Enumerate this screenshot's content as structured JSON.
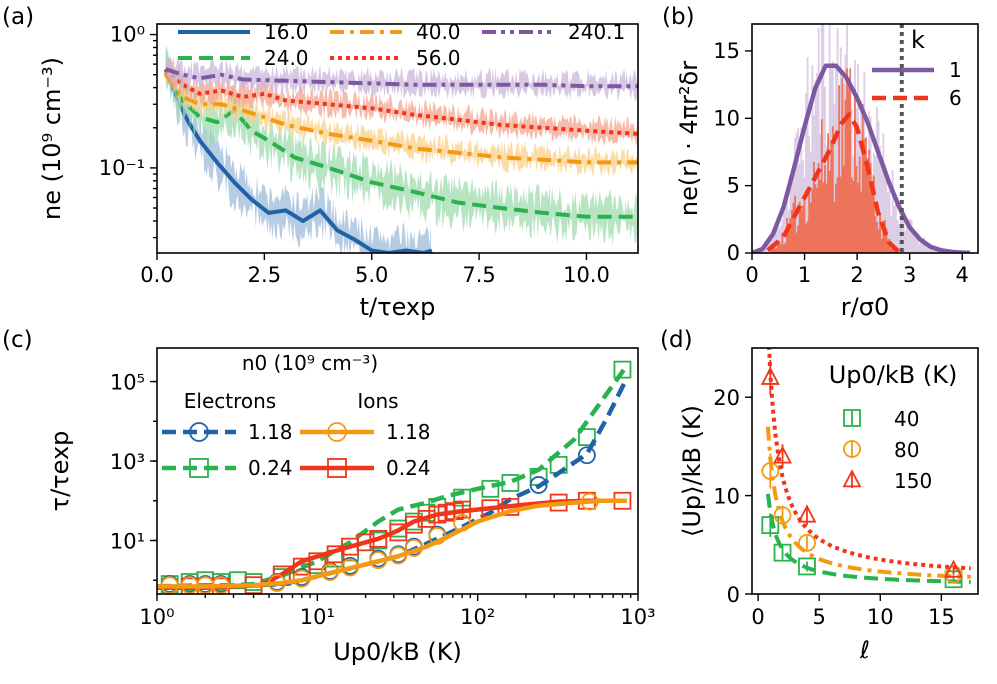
{
  "colors": {
    "blue": "#2062a8",
    "green": "#2ab24e",
    "orange": "#f39a12",
    "red": "#f0361a",
    "purple": "#7f58a4",
    "green_fill": "#9fdcb0",
    "blue_fill": "#9cbbd9",
    "orange_fill": "#f9d08a",
    "red_fill": "#f3a48f",
    "purple_fill": "#c9b6d9",
    "purple_hist": "#d7c7e2",
    "red_hist": "#ef6a4f",
    "dotgray": "#555555"
  },
  "panel_labels": [
    "(a)",
    "(b)",
    "(c)",
    "(d)"
  ],
  "chart_data": [
    {
      "id": "a",
      "type": "line",
      "yscale": "log",
      "xlabel": "t/τexp",
      "ylabel": "ne (10⁹ cm⁻³)",
      "xlim": [
        0,
        11.2
      ],
      "ylim": [
        0.023,
        1.2
      ],
      "xticks": [
        0,
        2.5,
        5,
        7.5,
        10
      ],
      "xtick_labels": [
        "0.0",
        "2.5",
        "5.0",
        "7.5",
        "10.0"
      ],
      "yticks": [
        0.1,
        1
      ],
      "ytick_labels": [
        "10⁻¹",
        "10⁰"
      ],
      "legend": {
        "position": "top",
        "ncol": 3
      },
      "series": [
        {
          "name": "16.0",
          "color": "blue",
          "style": "solid",
          "x": [
            0.2,
            0.4,
            0.7,
            1.0,
            1.4,
            1.8,
            2.2,
            2.6,
            3.0,
            3.4,
            3.8,
            4.2,
            4.6,
            5.0,
            5.4,
            5.8,
            6.2,
            6.4
          ],
          "y": [
            0.55,
            0.38,
            0.23,
            0.16,
            0.11,
            0.078,
            0.058,
            0.046,
            0.048,
            0.04,
            0.048,
            0.034,
            0.029,
            0.024,
            0.023,
            0.024,
            0.023,
            0.024
          ]
        },
        {
          "name": "24.0",
          "color": "green",
          "style": "dashed",
          "x": [
            0.2,
            0.6,
            1.0,
            1.4,
            1.8,
            2.2,
            2.6,
            3.2,
            4,
            5,
            6,
            7,
            8,
            9,
            10,
            11.2
          ],
          "y": [
            0.52,
            0.32,
            0.24,
            0.22,
            0.27,
            0.19,
            0.16,
            0.12,
            0.1,
            0.078,
            0.066,
            0.055,
            0.05,
            0.046,
            0.043,
            0.043
          ]
        },
        {
          "name": "40.0",
          "color": "orange",
          "style": "dashdot",
          "x": [
            0.2,
            0.6,
            1.0,
            1.5,
            2.0,
            2.5,
            3,
            4,
            5,
            6,
            7,
            8,
            9,
            10,
            11.2
          ],
          "y": [
            0.5,
            0.34,
            0.3,
            0.3,
            0.27,
            0.24,
            0.21,
            0.18,
            0.16,
            0.14,
            0.13,
            0.12,
            0.115,
            0.11,
            0.11
          ]
        },
        {
          "name": "56.0",
          "color": "red",
          "style": "dotted",
          "x": [
            0.2,
            0.6,
            1.0,
            1.5,
            2.0,
            2.5,
            3,
            4,
            5,
            6,
            7,
            8,
            9,
            10,
            11.2
          ],
          "y": [
            0.55,
            0.42,
            0.36,
            0.38,
            0.34,
            0.36,
            0.32,
            0.3,
            0.28,
            0.25,
            0.23,
            0.21,
            0.2,
            0.19,
            0.18
          ]
        },
        {
          "name": "240.1",
          "color": "purple",
          "style": "dashdotdot",
          "x": [
            0.2,
            0.6,
            1.0,
            1.5,
            2,
            3,
            4,
            5,
            6,
            7,
            8,
            9,
            10,
            11.2
          ],
          "y": [
            0.55,
            0.5,
            0.47,
            0.5,
            0.46,
            0.45,
            0.44,
            0.43,
            0.42,
            0.42,
            0.42,
            0.42,
            0.41,
            0.41
          ]
        }
      ]
    },
    {
      "id": "b",
      "type": "bar",
      "xlabel": "r/σ0",
      "ylabel": "ne(r) · 4πr²δr",
      "xlim": [
        0,
        4.3
      ],
      "ylim": [
        0,
        17
      ],
      "xticks": [
        0,
        1,
        2,
        3,
        4
      ],
      "yticks": [
        0,
        5,
        10,
        15
      ],
      "legend": {
        "title": "k",
        "position": "top-right"
      },
      "vline_x": 2.85,
      "series": [
        {
          "name": "1",
          "color": "purple",
          "style": "solid",
          "x": [
            0,
            0.2,
            0.4,
            0.6,
            0.8,
            1.0,
            1.2,
            1.4,
            1.6,
            1.8,
            2.0,
            2.2,
            2.4,
            2.6,
            2.8,
            3.0,
            3.2,
            3.4,
            3.6,
            3.8,
            4.0,
            4.15
          ],
          "y": [
            0,
            0.3,
            1.4,
            3.4,
            6.3,
            9.4,
            12.2,
            13.9,
            13.9,
            13.0,
            11.5,
            9.7,
            7.5,
            5.3,
            3.4,
            1.9,
            1.0,
            0.45,
            0.2,
            0.08,
            0.03,
            0.01
          ]
        },
        {
          "name": "6",
          "color": "red",
          "style": "dashed",
          "x": [
            0.3,
            0.6,
            0.9,
            1.2,
            1.5,
            1.7,
            1.85,
            2.0,
            2.2,
            2.4,
            2.6,
            2.8
          ],
          "y": [
            0.2,
            1.2,
            3.4,
            5.6,
            7.8,
            9.6,
            10.3,
            9.3,
            6.4,
            3.0,
            0.8,
            0.05
          ]
        }
      ]
    },
    {
      "id": "c",
      "type": "line",
      "xscale": "log",
      "yscale": "log",
      "xlabel": "Up0/kB (K)",
      "ylabel": "τ/τexp",
      "xlim": [
        1,
        1000
      ],
      "ylim": [
        0.45,
        700000
      ],
      "xticks": [
        1,
        10,
        100,
        1000
      ],
      "xtick_labels": [
        "10⁰",
        "10¹",
        "10²",
        "10³"
      ],
      "yticks": [
        10,
        1000,
        100000
      ],
      "ytick_labels": [
        "10¹",
        "10³",
        "10⁵"
      ],
      "legend": {
        "title": "n0 (10⁹ cm⁻³)",
        "position": "top-left",
        "col1": "Electrons",
        "col2": "Ions"
      },
      "series": [
        {
          "name": "1.18",
          "group": "Electrons",
          "color": "blue",
          "style": "dashed",
          "marker": "circle",
          "x": [
            1,
            2,
            4,
            6,
            8,
            12,
            16,
            24,
            32,
            40,
            56,
            80,
            120,
            160,
            240,
            320,
            480,
            640,
            850
          ],
          "y": [
            0.7,
            0.7,
            0.75,
            0.8,
            1.0,
            1.5,
            2.0,
            3.0,
            4.0,
            6.0,
            11,
            22,
            50,
            110,
            230,
            500,
            1500,
            12000,
            120000
          ],
          "marker_x": [
            1.2,
            1.6,
            2.0,
            2.5,
            5.6,
            8,
            12,
            16,
            24,
            32,
            40,
            56,
            240,
            480
          ],
          "marker_y": [
            0.8,
            0.8,
            0.8,
            0.8,
            0.9,
            1.2,
            1.7,
            2.3,
            3.5,
            4.5,
            7,
            14,
            250,
            1400
          ]
        },
        {
          "name": "0.24",
          "group": "Electrons",
          "color": "green",
          "style": "dashed",
          "marker": "square",
          "x": [
            1,
            2,
            3,
            4,
            6,
            10,
            16,
            24,
            32,
            48,
            64,
            100,
            160,
            240,
            400,
            640,
            850
          ],
          "y": [
            0.7,
            0.75,
            0.75,
            0.8,
            1.3,
            3.0,
            9.0,
            30,
            60,
            90,
            130,
            200,
            300,
            600,
            3500,
            50000,
            250000
          ],
          "marker_x": [
            1.2,
            1.6,
            2.0,
            2.5,
            3.2,
            4,
            6,
            8,
            10,
            13,
            16,
            24,
            32,
            40,
            48,
            56,
            80,
            120,
            160,
            240,
            320,
            480,
            800
          ],
          "marker_y": [
            0.8,
            0.9,
            1.0,
            0.9,
            1.0,
            0.9,
            1.2,
            1.6,
            2.4,
            3.5,
            5,
            10,
            20,
            30,
            50,
            70,
            120,
            200,
            280,
            400,
            800,
            4000,
            200000
          ]
        },
        {
          "name": "1.18",
          "group": "Ions",
          "color": "orange",
          "style": "solid",
          "marker": "circle",
          "x": [
            1,
            2,
            4,
            6,
            8,
            12,
            16,
            24,
            32,
            48,
            64,
            100,
            160,
            240,
            400,
            600,
            850
          ],
          "y": [
            0.7,
            0.7,
            0.75,
            0.85,
            1.0,
            1.5,
            2.0,
            3.0,
            4.0,
            7,
            12,
            30,
            55,
            75,
            90,
            100,
            100
          ],
          "marker_x": [
            1.2,
            1.6,
            2.0,
            2.5,
            5.6,
            8,
            12,
            16,
            24,
            32,
            40,
            56,
            80,
            500
          ],
          "marker_y": [
            0.75,
            0.75,
            0.75,
            0.75,
            0.85,
            1.1,
            1.6,
            2.1,
            3.2,
            4.2,
            6.5,
            13,
            28,
            95
          ]
        },
        {
          "name": "0.24",
          "group": "Ions",
          "color": "red",
          "style": "solid",
          "marker": "square",
          "x": [
            1,
            2,
            3,
            4.5,
            6,
            8,
            12,
            16,
            24,
            32,
            40,
            56,
            80,
            120,
            200,
            320,
            500,
            850
          ],
          "y": [
            0.65,
            0.65,
            0.7,
            0.75,
            1.4,
            3.0,
            5.0,
            7.0,
            11,
            18,
            30,
            45,
            55,
            65,
            80,
            95,
            100,
            100
          ],
          "marker_x": [
            1.6,
            2.5,
            4,
            6,
            8,
            10,
            13,
            16,
            20,
            24,
            32,
            40,
            48,
            56,
            64,
            72,
            80,
            120,
            160,
            320,
            480,
            800
          ],
          "marker_y": [
            0.7,
            0.7,
            0.75,
            1.4,
            2.2,
            3.0,
            4.5,
            7,
            9,
            11,
            16,
            25,
            35,
            45,
            50,
            55,
            60,
            65,
            70,
            90,
            100,
            100
          ]
        }
      ]
    },
    {
      "id": "d",
      "type": "scatter",
      "xlabel": "ℓ",
      "ylabel": "⟨Up⟩/kB (K)",
      "xlim": [
        -0.5,
        18
      ],
      "ylim": [
        0,
        25
      ],
      "xticks": [
        0,
        5,
        10,
        15
      ],
      "yticks": [
        0,
        10,
        20
      ],
      "legend": {
        "title": "Up0/kB (K)",
        "position": "top-right"
      },
      "series": [
        {
          "name": "40",
          "color": "green",
          "marker": "square",
          "style": "dashed",
          "x": [
            1,
            2,
            4,
            16
          ],
          "y": [
            7,
            4.2,
            2.8,
            1.5
          ],
          "yerr": [
            1.2,
            0.7,
            0.5,
            0.3
          ],
          "fit": {
            "a": 7.5,
            "b": 0.8
          }
        },
        {
          "name": "80",
          "color": "orange",
          "marker": "circle",
          "style": "dashdot",
          "x": [
            1,
            2,
            4,
            16
          ],
          "y": [
            12.5,
            8,
            5.2,
            2.0
          ],
          "yerr": [
            1.8,
            1.0,
            0.7,
            0.3
          ],
          "fit": {
            "a": 12.8,
            "b": 1.0
          }
        },
        {
          "name": "150",
          "color": "red",
          "marker": "triangle",
          "style": "dotted",
          "x": [
            1,
            2,
            4,
            16
          ],
          "y": [
            22,
            14,
            8,
            2.4
          ],
          "yerr": [
            1.8,
            1.2,
            1.0,
            0.4
          ],
          "fit": {
            "a": 21,
            "b": 1.4
          }
        }
      ]
    }
  ]
}
